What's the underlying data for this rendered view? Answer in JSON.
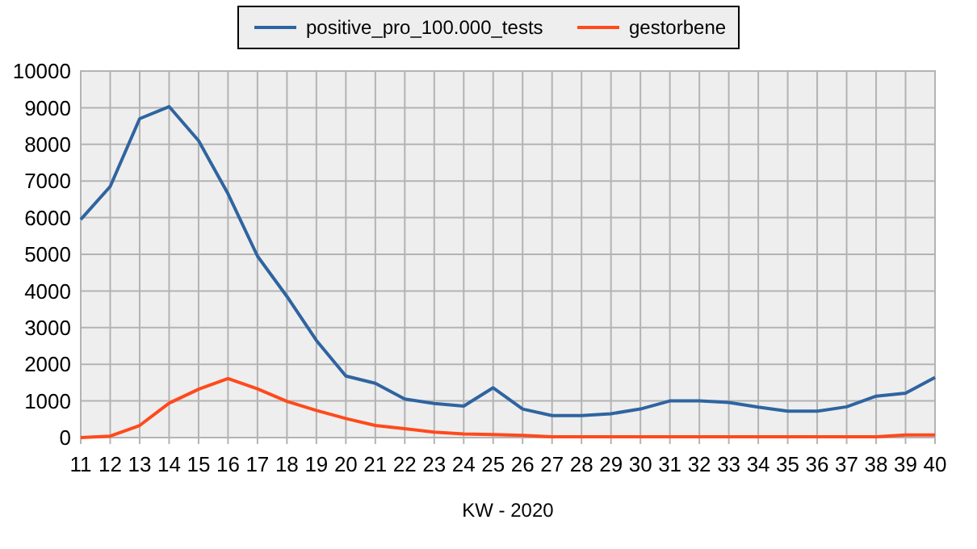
{
  "chart_data": {
    "type": "line",
    "xlabel": "KW - 2020",
    "categories": [
      "11",
      "12",
      "13",
      "14",
      "15",
      "16",
      "17",
      "18",
      "19",
      "20",
      "21",
      "22",
      "23",
      "24",
      "25",
      "26",
      "27",
      "28",
      "29",
      "30",
      "31",
      "32",
      "33",
      "34",
      "35",
      "36",
      "37",
      "38",
      "39",
      "40"
    ],
    "series": [
      {
        "name": "positive_pro_100.000_tests",
        "color": "#2f64a0",
        "values": [
          5950,
          6850,
          8700,
          9030,
          8100,
          6650,
          4950,
          3850,
          2650,
          1680,
          1480,
          1050,
          930,
          860,
          1360,
          780,
          600,
          600,
          650,
          780,
          1000,
          1000,
          960,
          830,
          720,
          720,
          840,
          1130,
          1210,
          1640
        ]
      },
      {
        "name": "gestorbene",
        "color": "#ff4a1c",
        "values": [
          0,
          40,
          330,
          940,
          1320,
          1610,
          1330,
          990,
          740,
          520,
          330,
          240,
          150,
          100,
          80,
          60,
          20,
          20,
          20,
          20,
          20,
          20,
          20,
          20,
          20,
          20,
          20,
          20,
          70,
          70
        ]
      }
    ],
    "ylim": [
      0,
      10000
    ],
    "yticks": [
      0,
      1000,
      2000,
      3000,
      4000,
      5000,
      6000,
      7000,
      8000,
      9000,
      10000
    ],
    "grid": true,
    "legend": "top",
    "marker": "none",
    "line_style": "solid"
  }
}
